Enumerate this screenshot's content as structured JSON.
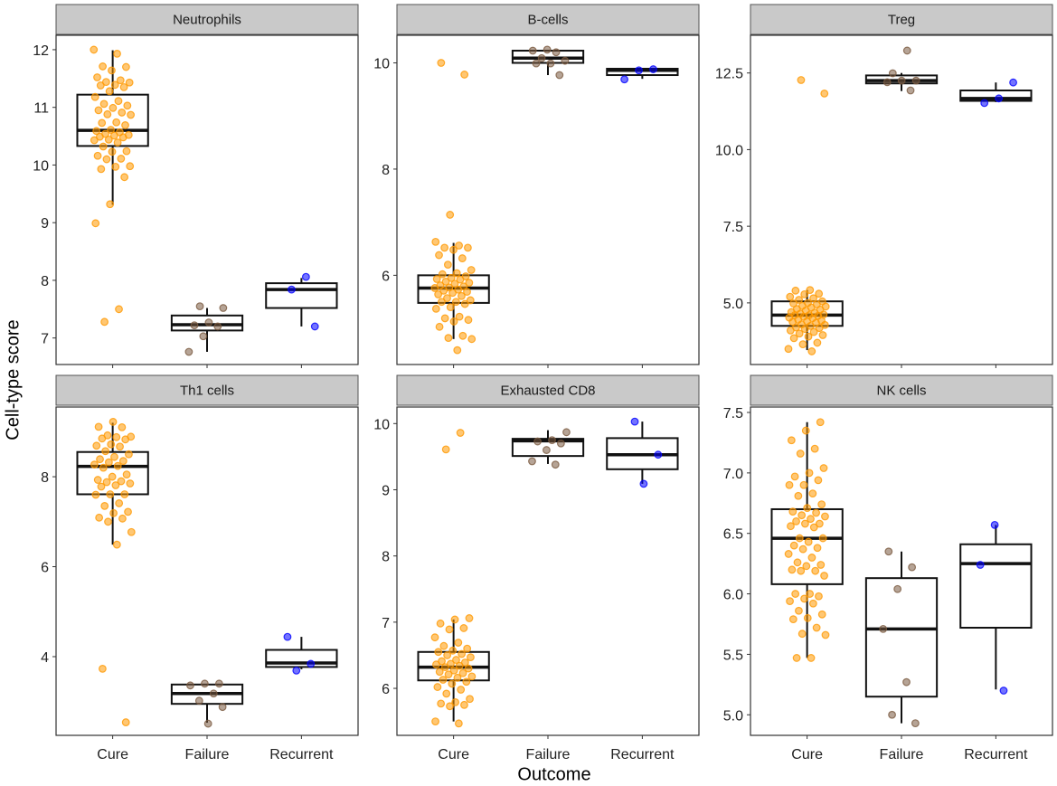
{
  "chart_data": {
    "type": "box",
    "xlabel": "Outcome",
    "ylabel": "Cell-type score",
    "categories": [
      "Cure",
      "Failure",
      "Recurrent"
    ],
    "colors": {
      "Cure": "#FF9900",
      "Failure": "#7A5A40",
      "Recurrent": "#0000FF"
    },
    "layout": "3 columns x 2 rows, free y scales",
    "facets": [
      {
        "title": "Neutrophils",
        "ylim": [
          6.54,
          12.25
        ],
        "yticks": [
          "7",
          "8",
          "9",
          "10",
          "11",
          "12"
        ],
        "groups": [
          {
            "name": "Cure",
            "whisker_low": 9.31,
            "q1": 10.33,
            "median": 10.6,
            "q3": 11.22,
            "whisker_high": 11.99,
            "points": [
              12.0,
              11.93,
              11.71,
              11.7,
              11.64,
              11.52,
              11.47,
              11.44,
              11.43,
              11.39,
              11.38,
              11.35,
              11.28,
              11.18,
              11.11,
              11.06,
              11.03,
              10.99,
              10.95,
              10.91,
              10.88,
              10.87,
              10.74,
              10.73,
              10.69,
              10.61,
              10.59,
              10.57,
              10.54,
              10.52,
              10.51,
              10.49,
              10.48,
              10.44,
              10.43,
              10.39,
              10.32,
              10.24,
              10.23,
              10.16,
              10.11,
              10.1,
              9.98,
              9.97,
              9.93,
              9.79,
              9.32,
              8.99,
              7.5,
              7.28
            ]
          },
          {
            "name": "Failure",
            "whisker_low": 6.76,
            "q1": 7.13,
            "median": 7.23,
            "q3": 7.39,
            "whisker_high": 7.52,
            "points": [
              7.55,
              7.52,
              7.27,
              7.22,
              7.2,
              7.03,
              6.76
            ]
          },
          {
            "name": "Recurrent",
            "whisker_low": 7.2,
            "q1": 7.52,
            "median": 7.84,
            "q3": 7.95,
            "whisker_high": 8.04,
            "points": [
              8.06,
              7.84,
              7.2
            ]
          }
        ]
      },
      {
        "title": "B-cells",
        "ylim": [
          4.32,
          10.52
        ],
        "yticks": [
          "6",
          "8",
          "10"
        ],
        "groups": [
          {
            "name": "Cure",
            "whisker_low": 4.8,
            "q1": 5.48,
            "median": 5.76,
            "q3": 6.0,
            "whisker_high": 6.61,
            "points": [
              10.0,
              9.78,
              7.14,
              6.63,
              6.56,
              6.52,
              6.52,
              6.48,
              6.38,
              6.32,
              6.2,
              6.1,
              6.04,
              6.02,
              5.98,
              5.95,
              5.93,
              5.92,
              5.88,
              5.86,
              5.84,
              5.81,
              5.79,
              5.77,
              5.76,
              5.73,
              5.71,
              5.69,
              5.67,
              5.64,
              5.61,
              5.57,
              5.53,
              5.5,
              5.5,
              5.46,
              5.4,
              5.37,
              5.22,
              5.19,
              5.16,
              5.13,
              5.03,
              4.86,
              4.82,
              4.8,
              4.59
            ]
          },
          {
            "name": "Failure",
            "whisker_low": 9.77,
            "q1": 10.0,
            "median": 10.09,
            "q3": 10.23,
            "whisker_high": 10.23,
            "points": [
              10.25,
              10.23,
              10.2,
              10.09,
              10.04,
              9.99,
              9.99,
              9.77
            ]
          },
          {
            "name": "Recurrent",
            "whisker_low": 9.7,
            "q1": 9.77,
            "median": 9.86,
            "q3": 9.89,
            "whisker_high": 9.89,
            "points": [
              9.88,
              9.86,
              9.69
            ]
          }
        ]
      },
      {
        "title": "Treg",
        "ylim": [
          2.99,
          13.73
        ],
        "yticks": [
          "5.0",
          "7.5",
          "10.0",
          "12.5"
        ],
        "groups": [
          {
            "name": "Cure",
            "whisker_low": 3.46,
            "q1": 4.25,
            "median": 4.6,
            "q3": 5.05,
            "whisker_high": 5.42,
            "points": [
              12.27,
              11.83,
              5.42,
              5.4,
              5.3,
              5.28,
              5.2,
              5.15,
              5.1,
              5.05,
              5.0,
              4.98,
              4.95,
              4.9,
              4.88,
              4.85,
              4.8,
              4.78,
              4.75,
              4.7,
              4.68,
              4.65,
              4.62,
              4.6,
              4.6,
              4.58,
              4.55,
              4.52,
              4.5,
              4.45,
              4.42,
              4.4,
              4.38,
              4.35,
              4.3,
              4.28,
              4.25,
              4.2,
              4.18,
              4.15,
              4.1,
              4.05,
              4.0,
              3.95,
              3.9,
              3.85,
              3.7,
              3.65,
              3.5,
              3.42
            ]
          },
          {
            "name": "Failure",
            "whisker_low": 11.91,
            "q1": 12.16,
            "median": 12.25,
            "q3": 12.42,
            "whisker_high": 12.5,
            "points": [
              13.23,
              12.49,
              12.25,
              12.25,
              12.2,
              11.93
            ]
          },
          {
            "name": "Recurrent",
            "whisker_low": 11.55,
            "q1": 11.59,
            "median": 11.67,
            "q3": 11.93,
            "whisker_high": 12.19,
            "points": [
              12.19,
              11.67,
              11.52
            ]
          }
        ]
      },
      {
        "title": "Th1 cells",
        "ylim": [
          2.25,
          9.55
        ],
        "yticks": [
          "4",
          "6",
          "8"
        ],
        "groups": [
          {
            "name": "Cure",
            "whisker_low": 6.49,
            "q1": 7.61,
            "median": 8.23,
            "q3": 8.55,
            "whisker_high": 9.2,
            "points": [
              9.22,
              9.11,
              9.1,
              8.92,
              8.89,
              8.88,
              8.85,
              8.83,
              8.72,
              8.69,
              8.67,
              8.57,
              8.5,
              8.44,
              8.39,
              8.35,
              8.32,
              8.27,
              8.24,
              8.2,
              8.05,
              8.0,
              7.93,
              7.9,
              7.88,
              7.85,
              7.81,
              7.78,
              7.61,
              7.61,
              7.6,
              7.41,
              7.35,
              7.22,
              7.19,
              7.09,
              7.07,
              7.0,
              6.77,
              6.49,
              3.73,
              2.54
            ]
          },
          {
            "name": "Failure",
            "whisker_low": 2.53,
            "q1": 2.95,
            "median": 3.18,
            "q3": 3.38,
            "whisker_high": 3.38,
            "points": [
              3.4,
              3.4,
              3.36,
              3.18,
              3.02,
              2.88,
              2.51
            ]
          },
          {
            "name": "Recurrent",
            "whisker_low": 3.72,
            "q1": 3.77,
            "median": 3.86,
            "q3": 4.15,
            "whisker_high": 4.44,
            "points": [
              4.44,
              3.84,
              3.69
            ]
          }
        ]
      },
      {
        "title": "Exhausted CD8",
        "ylim": [
          5.29,
          10.25
        ],
        "yticks": [
          "6",
          "7",
          "8",
          "9",
          "10"
        ],
        "groups": [
          {
            "name": "Cure",
            "whisker_low": 5.5,
            "q1": 6.12,
            "median": 6.32,
            "q3": 6.55,
            "whisker_high": 7.04,
            "points": [
              9.86,
              9.61,
              7.06,
              7.04,
              6.98,
              6.91,
              6.89,
              6.77,
              6.69,
              6.64,
              6.6,
              6.57,
              6.55,
              6.52,
              6.5,
              6.47,
              6.43,
              6.41,
              6.39,
              6.37,
              6.36,
              6.34,
              6.32,
              6.3,
              6.27,
              6.25,
              6.23,
              6.21,
              6.18,
              6.16,
              6.13,
              6.1,
              6.07,
              6.02,
              5.98,
              5.92,
              5.84,
              5.79,
              5.77,
              5.75,
              5.73,
              5.5,
              5.47
            ]
          },
          {
            "name": "Failure",
            "whisker_low": 9.39,
            "q1": 9.51,
            "median": 9.74,
            "q3": 9.77,
            "whisker_high": 9.9,
            "points": [
              9.87,
              9.75,
              9.73,
              9.7,
              9.6,
              9.43,
              9.38
            ]
          },
          {
            "name": "Recurrent",
            "whisker_low": 9.09,
            "q1": 9.31,
            "median": 9.53,
            "q3": 9.78,
            "whisker_high": 10.03,
            "points": [
              10.03,
              9.53,
              9.09
            ]
          }
        ]
      },
      {
        "title": "NK cells",
        "ylim": [
          4.83,
          7.545
        ],
        "yticks": [
          "5.0",
          "5.5",
          "6.0",
          "6.5",
          "7.0",
          "7.5"
        ],
        "groups": [
          {
            "name": "Cure",
            "whisker_low": 5.47,
            "q1": 6.08,
            "median": 6.46,
            "q3": 6.7,
            "whisker_high": 7.42,
            "points": [
              7.42,
              7.35,
              7.27,
              7.2,
              7.16,
              7.04,
              7.0,
              6.97,
              6.94,
              6.9,
              6.9,
              6.83,
              6.81,
              6.74,
              6.71,
              6.68,
              6.67,
              6.65,
              6.64,
              6.62,
              6.6,
              6.58,
              6.58,
              6.56,
              6.55,
              6.46,
              6.46,
              6.43,
              6.4,
              6.38,
              6.37,
              6.33,
              6.3,
              6.26,
              6.24,
              6.23,
              6.2,
              6.19,
              6.19,
              6.15,
              6.0,
              6.0,
              5.98,
              5.96,
              5.94,
              5.92,
              5.86,
              5.83,
              5.8,
              5.79,
              5.72,
              5.67,
              5.66,
              5.47,
              5.47
            ]
          },
          {
            "name": "Failure",
            "whisker_low": 4.93,
            "q1": 5.15,
            "median": 5.71,
            "q3": 6.13,
            "whisker_high": 6.35,
            "points": [
              6.35,
              6.22,
              6.04,
              5.71,
              5.27,
              5.0,
              4.93
            ]
          },
          {
            "name": "Recurrent",
            "whisker_low": 5.21,
            "q1": 5.72,
            "median": 6.25,
            "q3": 6.41,
            "whisker_high": 6.57,
            "points": [
              6.57,
              6.24,
              5.2
            ]
          }
        ]
      }
    ]
  }
}
